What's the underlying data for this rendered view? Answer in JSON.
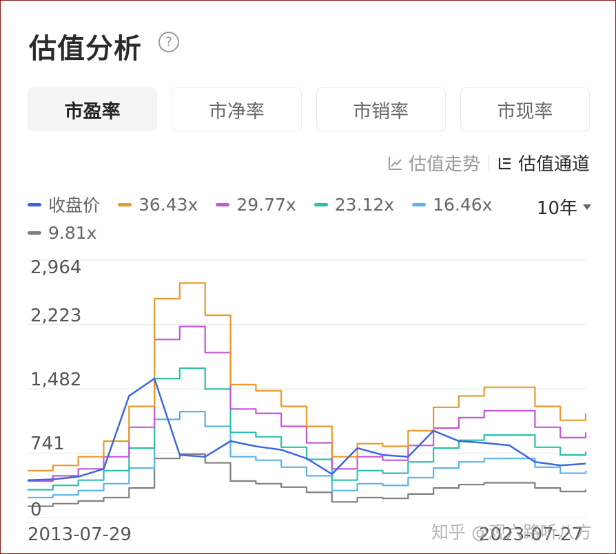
{
  "header": {
    "title": "估值分析",
    "help_icon": "?"
  },
  "tabs": [
    {
      "label": "市盈率",
      "active": true
    },
    {
      "label": "市净率",
      "active": false
    },
    {
      "label": "市销率",
      "active": false
    },
    {
      "label": "市现率",
      "active": false
    }
  ],
  "view_modes": [
    {
      "label": "估值走势",
      "icon": "line-chart-icon",
      "active": false
    },
    {
      "label": "估值通道",
      "icon": "channel-icon",
      "active": true
    }
  ],
  "period_selector": {
    "value": "10年"
  },
  "watermark": "知乎 @观六路听八方",
  "colors": {
    "price": "#3f66e0",
    "band_36": "#e89a2a",
    "band_29": "#c357d6",
    "band_23": "#2ebfa6",
    "band_16": "#5ab4ea",
    "band_9": "#808080",
    "grid": "#eeeeee"
  },
  "chart_data": {
    "type": "line",
    "title": "估值通道 (市盈率)",
    "xlabel": "",
    "ylabel": "",
    "ylim": [
      0,
      2964
    ],
    "y_ticks": [
      "2,964",
      "2,223",
      "1,482",
      "741",
      "0"
    ],
    "x_ticks": [
      "2013-07-29",
      "2023-07-27"
    ],
    "grid": true,
    "legend_position": "top",
    "legend": [
      "收盘价",
      "36.43x",
      "29.77x",
      "23.12x",
      "16.46x",
      "9.81x"
    ],
    "x": [
      "2013-07",
      "2014-01",
      "2014-07",
      "2015-01",
      "2015-04",
      "2015-07",
      "2016-01",
      "2016-07",
      "2017-01",
      "2017-07",
      "2018-01",
      "2018-07",
      "2018-12",
      "2019-04",
      "2019-07",
      "2020-01",
      "2020-07",
      "2021-01",
      "2021-07",
      "2022-01",
      "2022-07",
      "2023-01",
      "2023-07"
    ],
    "series": [
      {
        "name": "收盘价",
        "values": [
          430,
          440,
          470,
          560,
          1400,
          1600,
          720,
          700,
          880,
          820,
          780,
          680,
          500,
          800,
          720,
          700,
          1000,
          880,
          860,
          830,
          640,
          600,
          620
        ]
      },
      {
        "name": "36.43x",
        "values": [
          540,
          600,
          700,
          880,
          1280,
          2520,
          2700,
          2330,
          1530,
          1460,
          1280,
          1050,
          700,
          850,
          820,
          1000,
          1270,
          1400,
          1500,
          1500,
          1280,
          1120,
          1200
        ]
      },
      {
        "name": "29.77x",
        "values": [
          420,
          480,
          560,
          700,
          1040,
          2050,
          2200,
          1900,
          1250,
          1200,
          1050,
          860,
          560,
          700,
          660,
          830,
          1030,
          1150,
          1230,
          1230,
          1040,
          920,
          980
        ]
      },
      {
        "name": "23.12x",
        "values": [
          320,
          370,
          430,
          540,
          800,
          1600,
          1720,
          1480,
          980,
          930,
          810,
          670,
          430,
          540,
          510,
          640,
          800,
          890,
          950,
          950,
          810,
          720,
          760
        ]
      },
      {
        "name": "16.46x",
        "values": [
          230,
          260,
          310,
          390,
          570,
          1130,
          1220,
          1050,
          700,
          660,
          580,
          480,
          310,
          390,
          370,
          460,
          570,
          640,
          680,
          680,
          580,
          510,
          540
        ]
      },
      {
        "name": "9.81x",
        "values": [
          130,
          160,
          190,
          230,
          340,
          680,
          730,
          630,
          420,
          390,
          350,
          290,
          180,
          230,
          220,
          270,
          340,
          380,
          400,
          400,
          340,
          300,
          320
        ]
      }
    ]
  }
}
